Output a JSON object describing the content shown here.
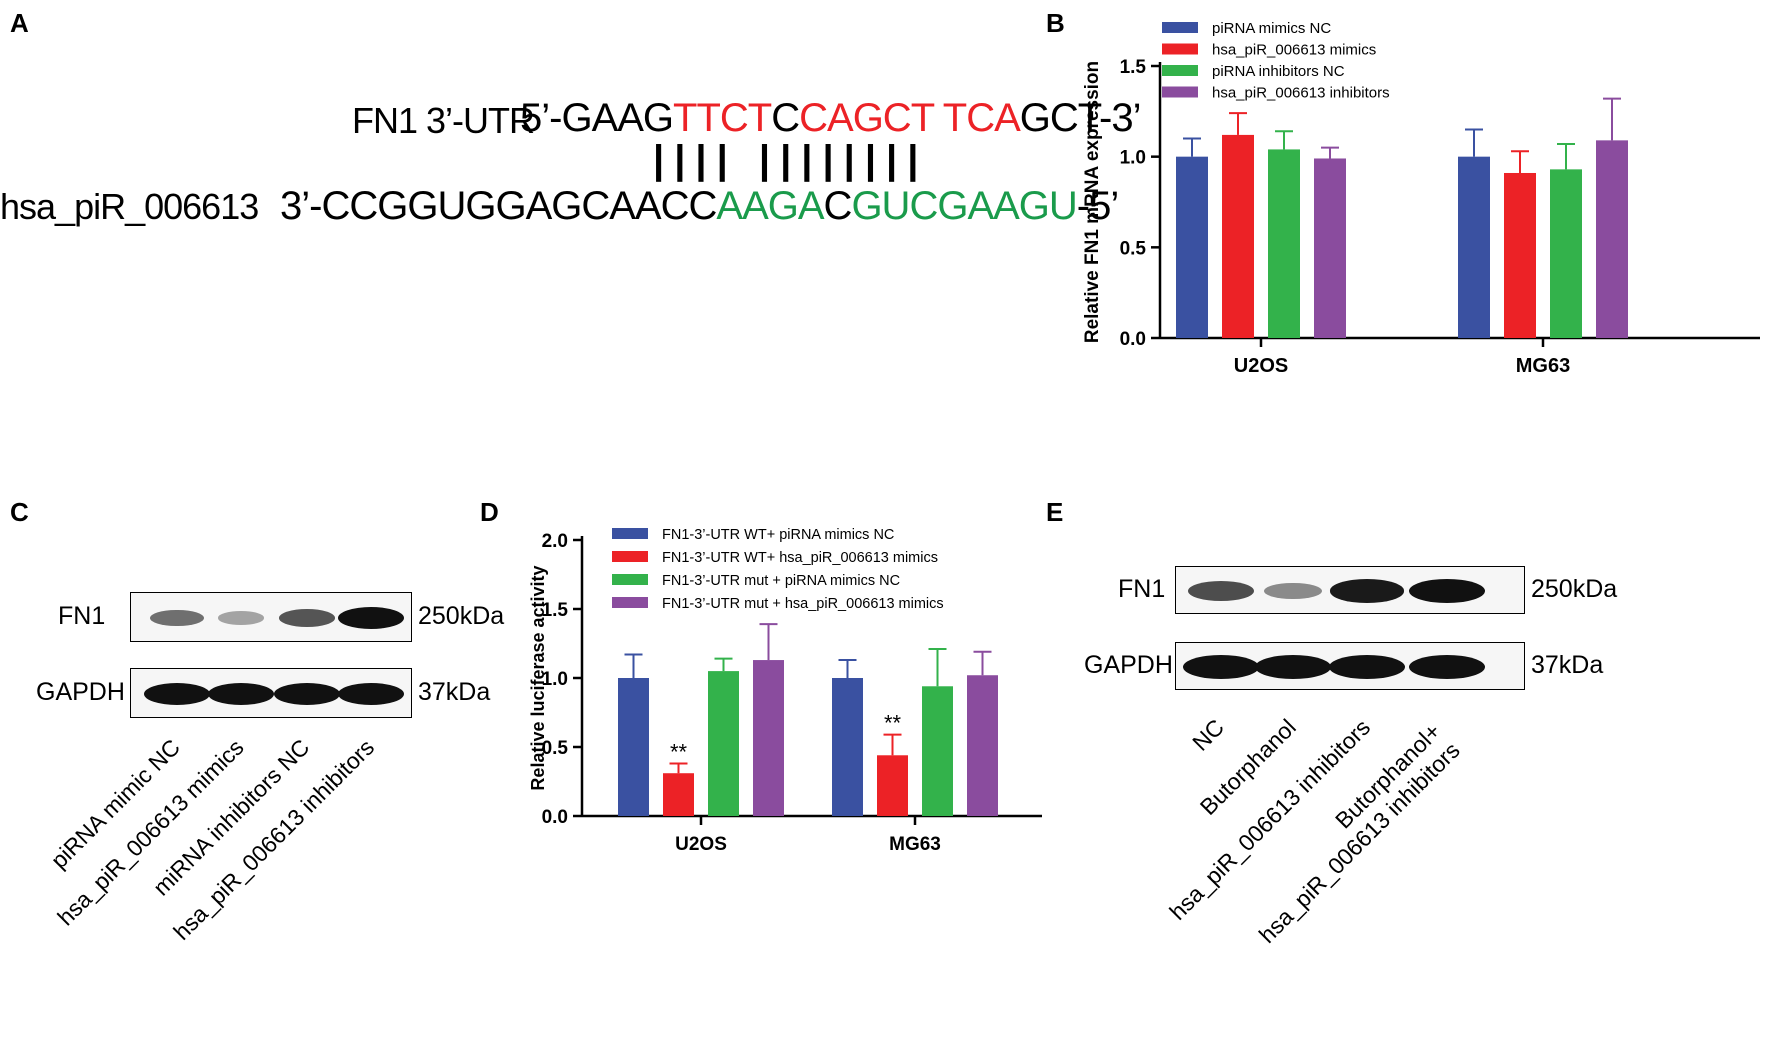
{
  "panels": {
    "a": {
      "letter": "A",
      "utr_label": "FN1 3’-UTR",
      "utr_segments": [
        {
          "t": "5’-GAAG",
          "c": "k"
        },
        {
          "t": "TTCT",
          "c": "r"
        },
        {
          "t": "C",
          "c": "k"
        },
        {
          "t": "CAGCT",
          "c": "r"
        },
        {
          "t": " ",
          "c": "k"
        },
        {
          "t": "TCA",
          "c": "r"
        },
        {
          "t": "GCT-3’",
          "c": "k"
        }
      ],
      "pairing_bars": "||||  ||||||||",
      "pirna_label": "hsa_piR_006613",
      "pirna_segments": [
        {
          "t": "3’-CCGGUGGAGCAACC",
          "c": "k"
        },
        {
          "t": "AAGA",
          "c": "g"
        },
        {
          "t": "C",
          "c": "k"
        },
        {
          "t": "GUCGAAGU",
          "c": "g"
        },
        {
          "t": "-5’",
          "c": "k"
        }
      ]
    },
    "b": {
      "letter": "B"
    },
    "c": {
      "letter": "C",
      "rows": [
        {
          "label": "FN1",
          "size": "250kDa",
          "intensity": [
            0.45,
            0.15,
            0.6,
            1.0
          ]
        },
        {
          "label": "GAPDH",
          "size": "37kDa",
          "intensity": [
            1.0,
            1.0,
            1.0,
            1.0
          ]
        }
      ],
      "lanes": [
        "piRNA mimic NC",
        "hsa_piR_006613 mimics",
        "miRNA inhibitors NC",
        "hsa_piR_006613 inhibitors"
      ]
    },
    "d": {
      "letter": "D"
    },
    "e": {
      "letter": "E",
      "rows": [
        {
          "label": "FN1",
          "size": "250kDa",
          "intensity": [
            0.65,
            0.3,
            0.95,
            1.0
          ]
        },
        {
          "label": "GAPDH",
          "size": "37kDa",
          "intensity": [
            1.0,
            1.0,
            1.0,
            1.0
          ]
        }
      ],
      "lanes": [
        {
          "line1": "NC",
          "line2": ""
        },
        {
          "line1": "Butorphanol",
          "line2": ""
        },
        {
          "line1": "hsa_piR_006613 inhibitors",
          "line2": ""
        },
        {
          "line1": "Butorphanol+",
          "line2": "hsa_piR_006613 inhibitors"
        }
      ]
    }
  },
  "colors": {
    "blue": "#3a51a1",
    "red": "#ec2226",
    "green": "#33b24b",
    "purple": "#8a4c9e"
  },
  "chart_data": [
    {
      "type": "bar",
      "title": "",
      "xlabel": "",
      "ylabel": "Relative FN1 mRNA expression",
      "categories": [
        "U2OS",
        "MG63"
      ],
      "ylim": [
        0,
        1.5
      ],
      "yticks": [
        "0.0",
        "0.5",
        "1.0",
        "1.5"
      ],
      "series": [
        {
          "name": "piRNA mimics NC",
          "color": "#3a51a1",
          "values": [
            1.0,
            1.0
          ],
          "err": [
            0.1,
            0.15
          ]
        },
        {
          "name": "hsa_piR_006613 mimics",
          "color": "#ec2226",
          "values": [
            1.12,
            0.91
          ],
          "err": [
            0.12,
            0.12
          ]
        },
        {
          "name": "piRNA inhibitors NC",
          "color": "#33b24b",
          "values": [
            1.04,
            0.93
          ],
          "err": [
            0.1,
            0.14
          ]
        },
        {
          "name": "hsa_piR_006613 inhibitors",
          "color": "#8a4c9e",
          "values": [
            0.99,
            1.09
          ],
          "err": [
            0.06,
            0.23
          ]
        }
      ],
      "legend": "top-left"
    },
    {
      "type": "bar",
      "title": "",
      "xlabel": "",
      "ylabel": "Relative luciferase activity",
      "categories": [
        "U2OS",
        "MG63"
      ],
      "ylim": [
        0,
        2.0
      ],
      "yticks": [
        "0.0",
        "0.5",
        "1.0",
        "1.5",
        "2.0"
      ],
      "series": [
        {
          "name": "FN1-3’-UTR WT+ piRNA mimics NC",
          "color": "#3a51a1",
          "values": [
            1.0,
            1.0
          ],
          "err": [
            0.17,
            0.13
          ],
          "sig": [
            "",
            ""
          ]
        },
        {
          "name": "FN1-3’-UTR WT+ hsa_piR_006613 mimics",
          "color": "#ec2226",
          "values": [
            0.31,
            0.44
          ],
          "err": [
            0.07,
            0.15
          ],
          "sig": [
            "**",
            "**"
          ]
        },
        {
          "name": "FN1-3’-UTR mut + piRNA mimics NC",
          "color": "#33b24b",
          "values": [
            1.05,
            0.94
          ],
          "err": [
            0.09,
            0.27
          ],
          "sig": [
            "",
            ""
          ]
        },
        {
          "name": "FN1-3’-UTR mut + hsa_piR_006613 mimics",
          "color": "#8a4c9e",
          "values": [
            1.13,
            1.02
          ],
          "err": [
            0.26,
            0.17
          ],
          "sig": [
            "",
            ""
          ]
        }
      ],
      "legend": "top-left"
    }
  ]
}
